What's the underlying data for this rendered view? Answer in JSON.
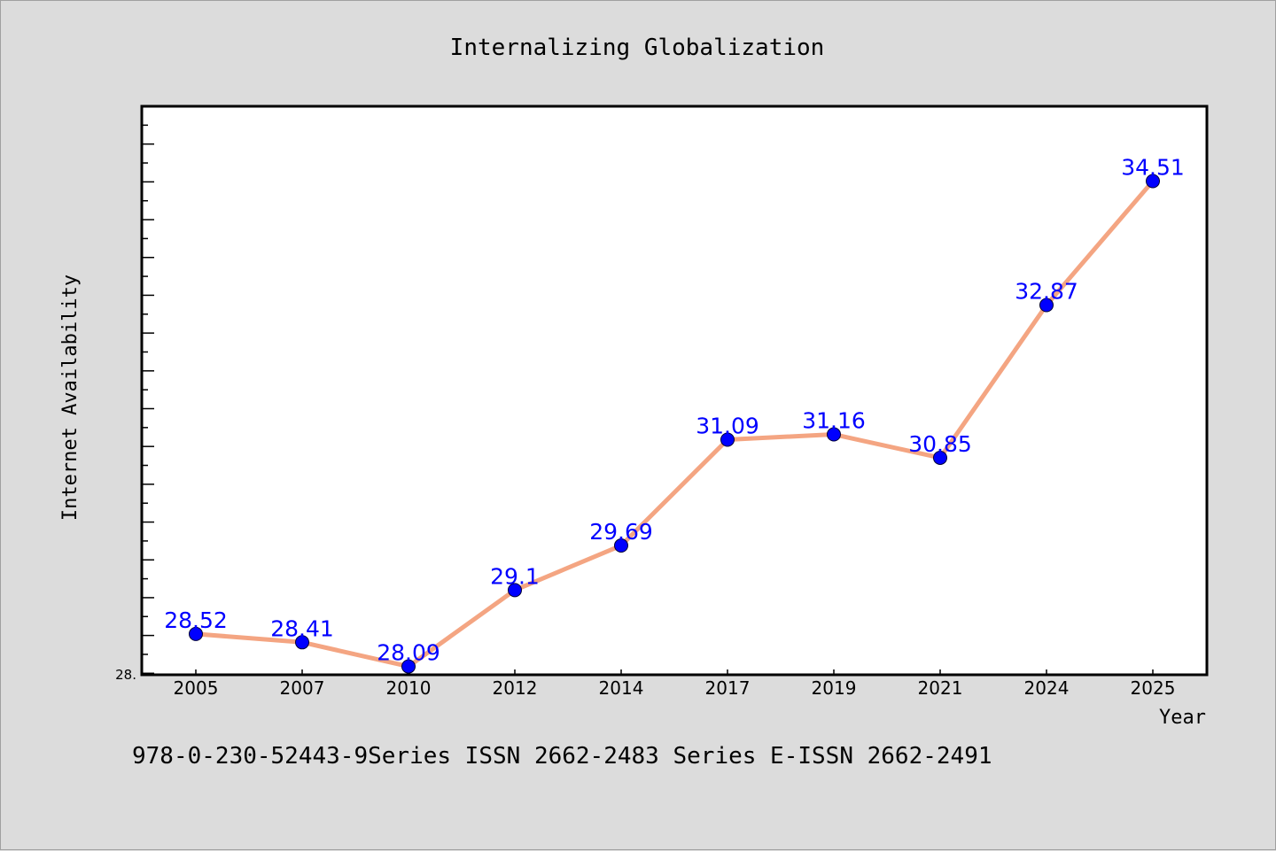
{
  "chart_data": {
    "type": "line",
    "title": "Internalizing Globalization",
    "xlabel": "Year",
    "ylabel": "Internet Availability",
    "categories": [
      "2005",
      "2007",
      "2010",
      "2012",
      "2014",
      "2017",
      "2019",
      "2021",
      "2024",
      "2025"
    ],
    "values": [
      28.52,
      28.41,
      28.09,
      29.1,
      29.69,
      31.09,
      31.16,
      30.85,
      32.87,
      34.51
    ],
    "data_labels": [
      "28.52",
      "28.41",
      "28.09",
      "29.1",
      "29.69",
      "31.09",
      "31.16",
      "30.85",
      "32.87",
      "34.51"
    ],
    "y_tick_labels": [
      "28."
    ],
    "ylim": [
      27.98,
      35.5
    ],
    "grid": false,
    "colors": {
      "line": "#f4a582",
      "marker": "#0000ff",
      "data_label": "#0000ff",
      "plot_background": "#ffffff",
      "figure_background": "#dcdcdc"
    }
  },
  "footer": "978-0-230-52443-9Series ISSN 2662-2483 Series E-ISSN 2662-2491"
}
